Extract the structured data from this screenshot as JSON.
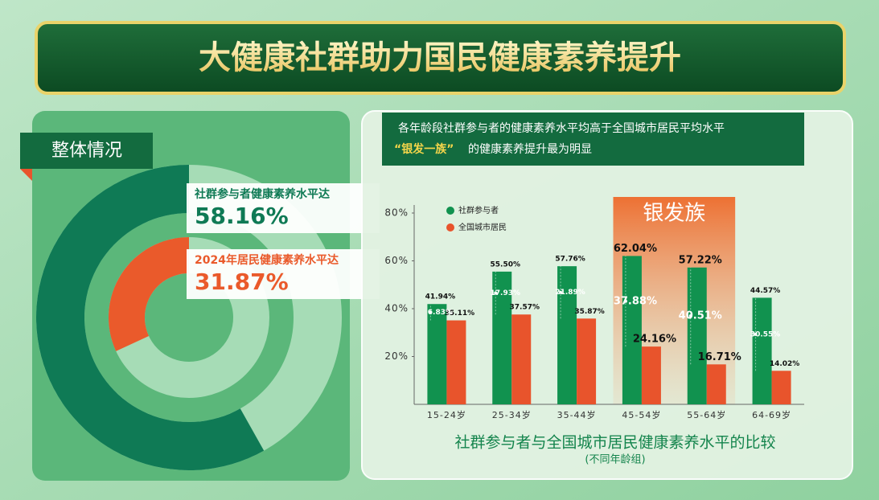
{
  "title": "大健康社群助力国民健康素养提升",
  "chart_data": [
    {
      "type": "donut",
      "title": "整体情况",
      "series": [
        {
          "name": "社群参与者健康素养水平达",
          "color": "#0f7a55",
          "values": [
            58.16
          ],
          "value_labels": [
            "58.16%"
          ]
        },
        {
          "name": "2024年居民健康素养水平达",
          "color": "#ea5a2b",
          "values": [
            31.87
          ],
          "value_labels": [
            "31.87%"
          ]
        }
      ]
    },
    {
      "type": "bar",
      "headline": [
        "各年龄段社群参与者的健康素养水平均高于全国城市居民平均水平",
        "“银发一族”",
        "的健康素养提升最为明显"
      ],
      "title": "社群参与者与全国城市居民健康素养水平的比较",
      "subtitle": "(不同年龄组)",
      "annotation": "银发族",
      "categories": [
        "15-24岁",
        "25-34岁",
        "35-44岁",
        "45-54岁",
        "55-64岁",
        "64-69岁"
      ],
      "series": [
        {
          "name": "社群参与者",
          "color": "#11924f",
          "values": [
            41.94,
            55.5,
            57.76,
            62.04,
            57.22,
            44.57
          ],
          "value_labels": [
            "41.94%",
            "55.50%",
            "57.76%",
            "62.04%",
            "57.22%",
            "44.57%"
          ]
        },
        {
          "name": "全国城市居民",
          "color": "#e8542c",
          "values": [
            35.11,
            37.57,
            35.87,
            24.16,
            16.71,
            14.02
          ],
          "value_labels": [
            "35.11%",
            "37.57%",
            "35.87%",
            "24.16%",
            "16.71%",
            "14.02%"
          ]
        }
      ],
      "differences": {
        "values": [
          6.83,
          17.93,
          21.89,
          37.88,
          40.51,
          30.55
        ],
        "value_labels": [
          "6.83%",
          "17.93%",
          "21.89%",
          "37.88%",
          "40.51%",
          "30.55%"
        ]
      },
      "ylim": [
        0,
        80
      ],
      "yticks": [
        {
          "value": 20,
          "label": "20%"
        },
        {
          "value": 40,
          "label": "40%"
        },
        {
          "value": 60,
          "label": "60%"
        },
        {
          "value": 80,
          "label": "80%"
        }
      ]
    }
  ]
}
